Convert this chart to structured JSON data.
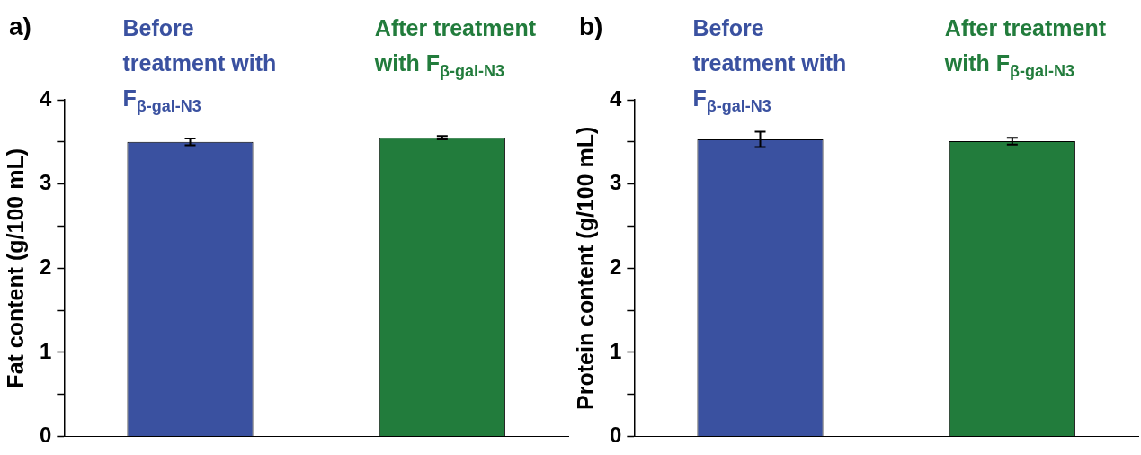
{
  "chart_data": [
    {
      "type": "bar",
      "title": "a)",
      "ylabel": "Fat content (g/100 mL)",
      "categories": [
        "Before treatment with F$_{β-gal-N3}$",
        "After treatment with F$_{β-gal-N3}$"
      ],
      "values": [
        3.5,
        3.55
      ],
      "errors": [
        0.04,
        0.02
      ],
      "colors": [
        "#3a51a0",
        "#227c3c"
      ],
      "ylim": [
        0,
        4
      ],
      "yticks": [
        0,
        {
          "value": 0.5,
          "label": null
        },
        1,
        {
          "value": 1.5,
          "label": null
        },
        2,
        {
          "value": 2.5,
          "label": null
        },
        3,
        {
          "value": 3.5,
          "label": null
        },
        4
      ],
      "grid": false,
      "legend": false
    },
    {
      "type": "bar",
      "title": "b)",
      "ylabel": "Protein content (g/100 mL)",
      "categories": [
        "Before treatment with F$_{β-gal-N3}$",
        "After treatment with F$_{β-gal-N3}$"
      ],
      "values": [
        3.53,
        3.51
      ],
      "errors": [
        0.09,
        0.04
      ],
      "colors": [
        "#3a51a0",
        "#227c3c"
      ],
      "ylim": [
        0,
        4
      ],
      "yticks": [
        0,
        {
          "value": 0.5,
          "label": null
        },
        1,
        {
          "value": 1.5,
          "label": null
        },
        2,
        {
          "value": 2.5,
          "label": null
        },
        3,
        {
          "value": 3.5,
          "label": null
        },
        4
      ],
      "grid": false,
      "legend": false
    }
  ]
}
